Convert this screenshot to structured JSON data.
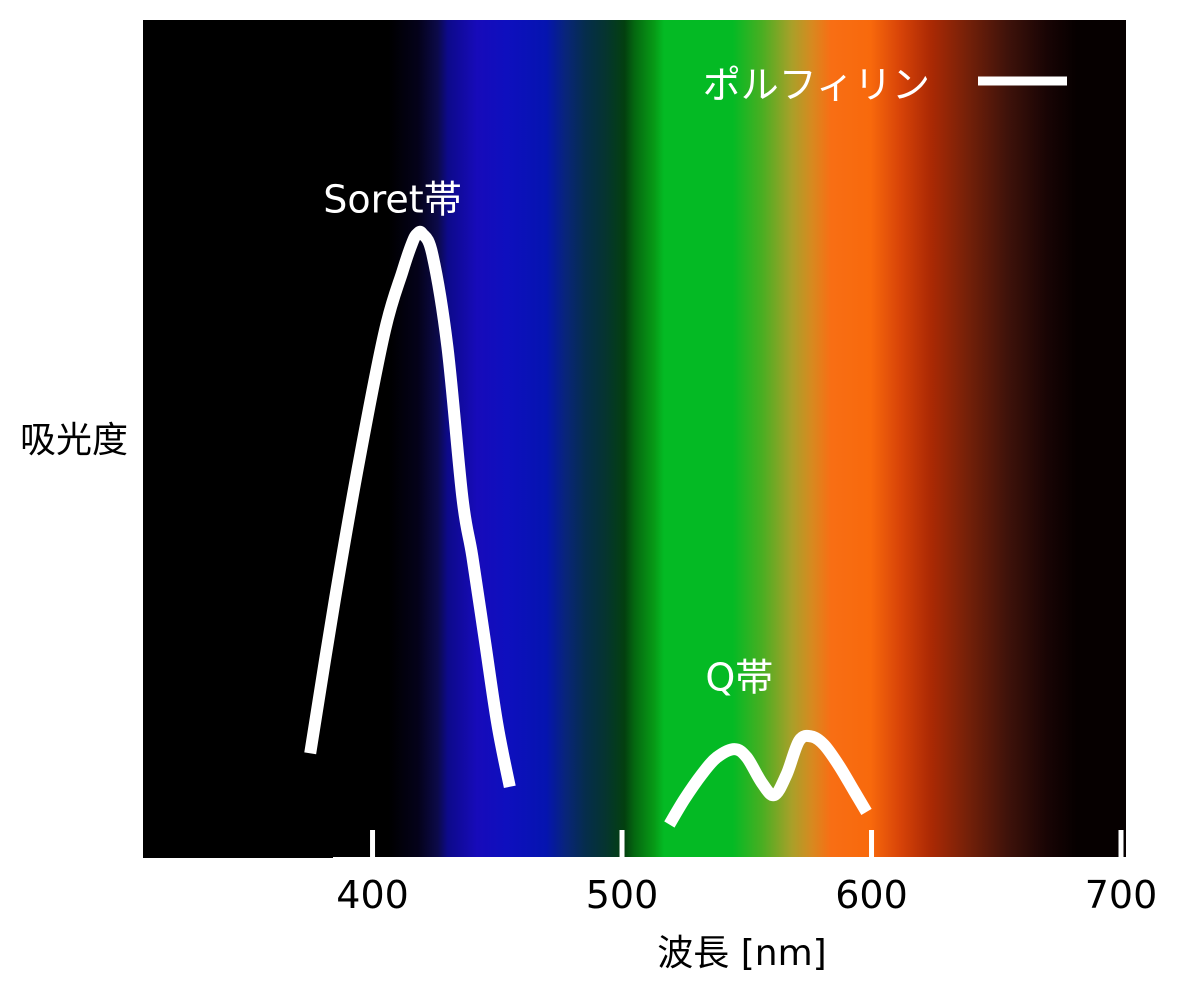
{
  "chart_data": {
    "type": "line",
    "title": "",
    "xlabel": "波長 [nm]",
    "ylabel": "吸光度",
    "xlim": [
      308,
      702
    ],
    "ylim": [
      0,
      1
    ],
    "xticks": [
      400,
      500,
      600,
      700
    ],
    "xtick_labels": [
      "400",
      "500",
      "600",
      "700"
    ],
    "y_ticks_shown": false,
    "grid": false,
    "background": "visible-spectrum gradient (black → violet → blue → green → orange → red → black)",
    "legend": {
      "placement": "top-right",
      "entries": [
        {
          "label": "ポルフィリン",
          "color": "#ffffff"
        }
      ]
    },
    "annotations": [
      {
        "text": "Soret帯",
        "x": 408,
        "y": 0.77
      },
      {
        "text": "Q帯",
        "x": 547,
        "y": 0.2
      }
    ],
    "series": [
      {
        "name": "ポルフィリン",
        "color": "#ffffff",
        "segments": [
          {
            "x": [
              375,
              385,
              395,
              405,
              412,
              416,
              418,
              420,
              424,
              430,
              436,
              440,
              445,
              450,
              455
            ],
            "y": [
              0.125,
              0.31,
              0.48,
              0.63,
              0.7,
              0.735,
              0.745,
              0.745,
              0.72,
              0.61,
              0.43,
              0.36,
              0.26,
              0.16,
              0.085
            ]
          },
          {
            "x": [
              519,
              525,
              532,
              538,
              545,
              550,
              556,
              561,
              566,
              571,
              576,
              581,
              587,
              593,
              598
            ],
            "y": [
              0.04,
              0.07,
              0.1,
              0.12,
              0.13,
              0.12,
              0.09,
              0.075,
              0.1,
              0.14,
              0.145,
              0.135,
              0.11,
              0.08,
              0.055
            ]
          }
        ]
      }
    ]
  },
  "colors": {
    "spectrum_stops": [
      [
        "0.00",
        "#000000"
      ],
      [
        "0.25",
        "#000000"
      ],
      [
        "0.28",
        "#04021a"
      ],
      [
        "0.30",
        "#0c0a4a"
      ],
      [
        "0.31",
        "#0d0a8a"
      ],
      [
        "0.34",
        "#170bba"
      ],
      [
        "0.37",
        "#0e0fbe"
      ],
      [
        "0.41",
        "#0514b0"
      ],
      [
        "0.43",
        "#08257a"
      ],
      [
        "0.45",
        "#052d4c"
      ],
      [
        "0.47",
        "#053430"
      ],
      [
        "0.49",
        "#03400f"
      ],
      [
        "0.50",
        "#046810"
      ],
      [
        "0.52",
        "#079a16"
      ],
      [
        "0.53",
        "#04ba24"
      ],
      [
        "0.60",
        "#04ba24"
      ],
      [
        "0.63",
        "#4aae22"
      ],
      [
        "0.66",
        "#a9a029"
      ],
      [
        "0.68",
        "#d68a20"
      ],
      [
        "0.70",
        "#f86e14"
      ],
      [
        "0.74",
        "#f8690c"
      ],
      [
        "0.77",
        "#d84408"
      ],
      [
        "0.80",
        "#ad2a04"
      ],
      [
        "0.84",
        "#732009"
      ],
      [
        "0.88",
        "#3e120a"
      ],
      [
        "0.92",
        "#180404"
      ],
      [
        "0.95",
        "#060000"
      ],
      [
        "1.00",
        "#060000"
      ]
    ]
  }
}
